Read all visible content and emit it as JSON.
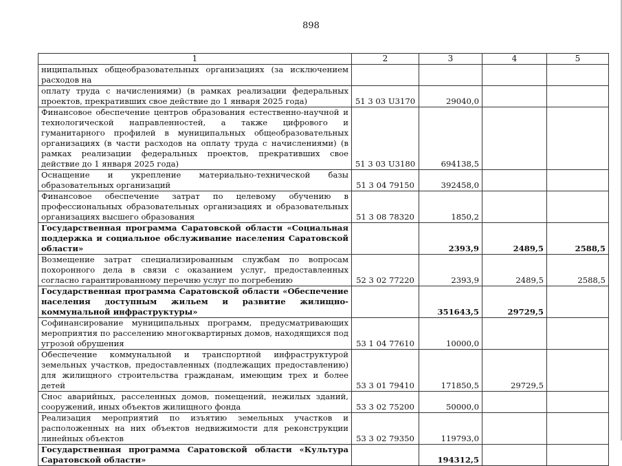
{
  "page_number": "898",
  "table": {
    "headers": [
      "1",
      "2",
      "3",
      "4",
      "5"
    ],
    "rows": [
      {
        "name": "ниципальных общеобразовательных организациях (за исключением расходов на",
        "code": "",
        "v3": "",
        "v4": "",
        "v5": "",
        "bold": false
      },
      {
        "name": "оплату труда с начислениями) (в рамках реализации федеральных проектов, прекративших свое действие до 1 января 2025 года)",
        "code": "51 3 03 U3170",
        "v3": "29040,0",
        "v4": "",
        "v5": "",
        "bold": false
      },
      {
        "name": "Финансовое обеспечение центров образования естественно-научной и техноло­гической направленностей, а также цифрового и гуманитарного профилей в му­ниципальных общеобразовательных организациях (в части расходов на оплату труда с начислениями) (в рамках реализации федеральных проектов, прекра­тивших свое действие до 1 января 2025 года)",
        "code": "51 3 03 U3180",
        "v3": "694138,5",
        "v4": "",
        "v5": "",
        "bold": false
      },
      {
        "name": "Оснащение и укрепление материально-технической базы образовательных ор­ганизаций",
        "code": "51 3 04 79150",
        "v3": "392458,0",
        "v4": "",
        "v5": "",
        "bold": false
      },
      {
        "name": "Финансовое обеспечение затрат по целевому обучению в профессиональных образовательных организациях и образовательных организациях высшего обра­зования",
        "code": "51 3 08 78320",
        "v3": "1850,2",
        "v4": "",
        "v5": "",
        "bold": false
      },
      {
        "name": "Государственная программа Саратовской области «Социальная поддержка и социальное обслуживание населения Саратовской области»",
        "code": "",
        "v3": "2393,9",
        "v4": "2489,5",
        "v5": "2588,5",
        "bold": true
      },
      {
        "name": "Возмещение затрат специализированным службам по вопросам похоронного дела в связи с оказанием услуг, предоставленных согласно гарантированному перечню услуг по погребению",
        "code": "52 3 02 77220",
        "v3": "2393,9",
        "v4": "2489,5",
        "v5": "2588,5",
        "bold": false
      },
      {
        "name": "Государственная программа Саратовской области «Обеспечение населения доступным жильем и развитие жилищно-коммунальной инфраструктуры»",
        "code": "",
        "v3": "351643,5",
        "v4": "29729,5",
        "v5": "",
        "bold": true
      },
      {
        "name": "Софинансирование муниципальных программ, предусматривающих мероприя­тия по расселению многоквартирных домов, находящихся под угрозой обруше­ния",
        "code": "53 1 04 77610",
        "v3": "10000,0",
        "v4": "",
        "v5": "",
        "bold": false
      },
      {
        "name": "Обеспечение коммунальной и транспортной инфраструктурой земельных участков, предоставленных (подлежащих предоставлению) для жилищного строительства гражданам, имеющим трех и более детей",
        "code": "53 3 01 79410",
        "v3": "171850,5",
        "v4": "29729,5",
        "v5": "",
        "bold": false
      },
      {
        "name": "Снос аварийных, расселенных домов, помещений, нежилых зданий, сооруже­ний, иных объектов жилищного фонда",
        "code": "53 3 02 75200",
        "v3": "50000,0",
        "v4": "",
        "v5": "",
        "bold": false
      },
      {
        "name": "Реализация мероприятий по изъятию земельных участков и расположенных на них объектов недвижимости для реконструкции линейных объектов",
        "code": "53 3 02 79350",
        "v3": "119793,0",
        "v4": "",
        "v5": "",
        "bold": false
      },
      {
        "name": "Государственная программа Саратовской области «Культура Саратовской области»",
        "code": "",
        "v3": "194312,5",
        "v4": "",
        "v5": "",
        "bold": true
      }
    ]
  }
}
